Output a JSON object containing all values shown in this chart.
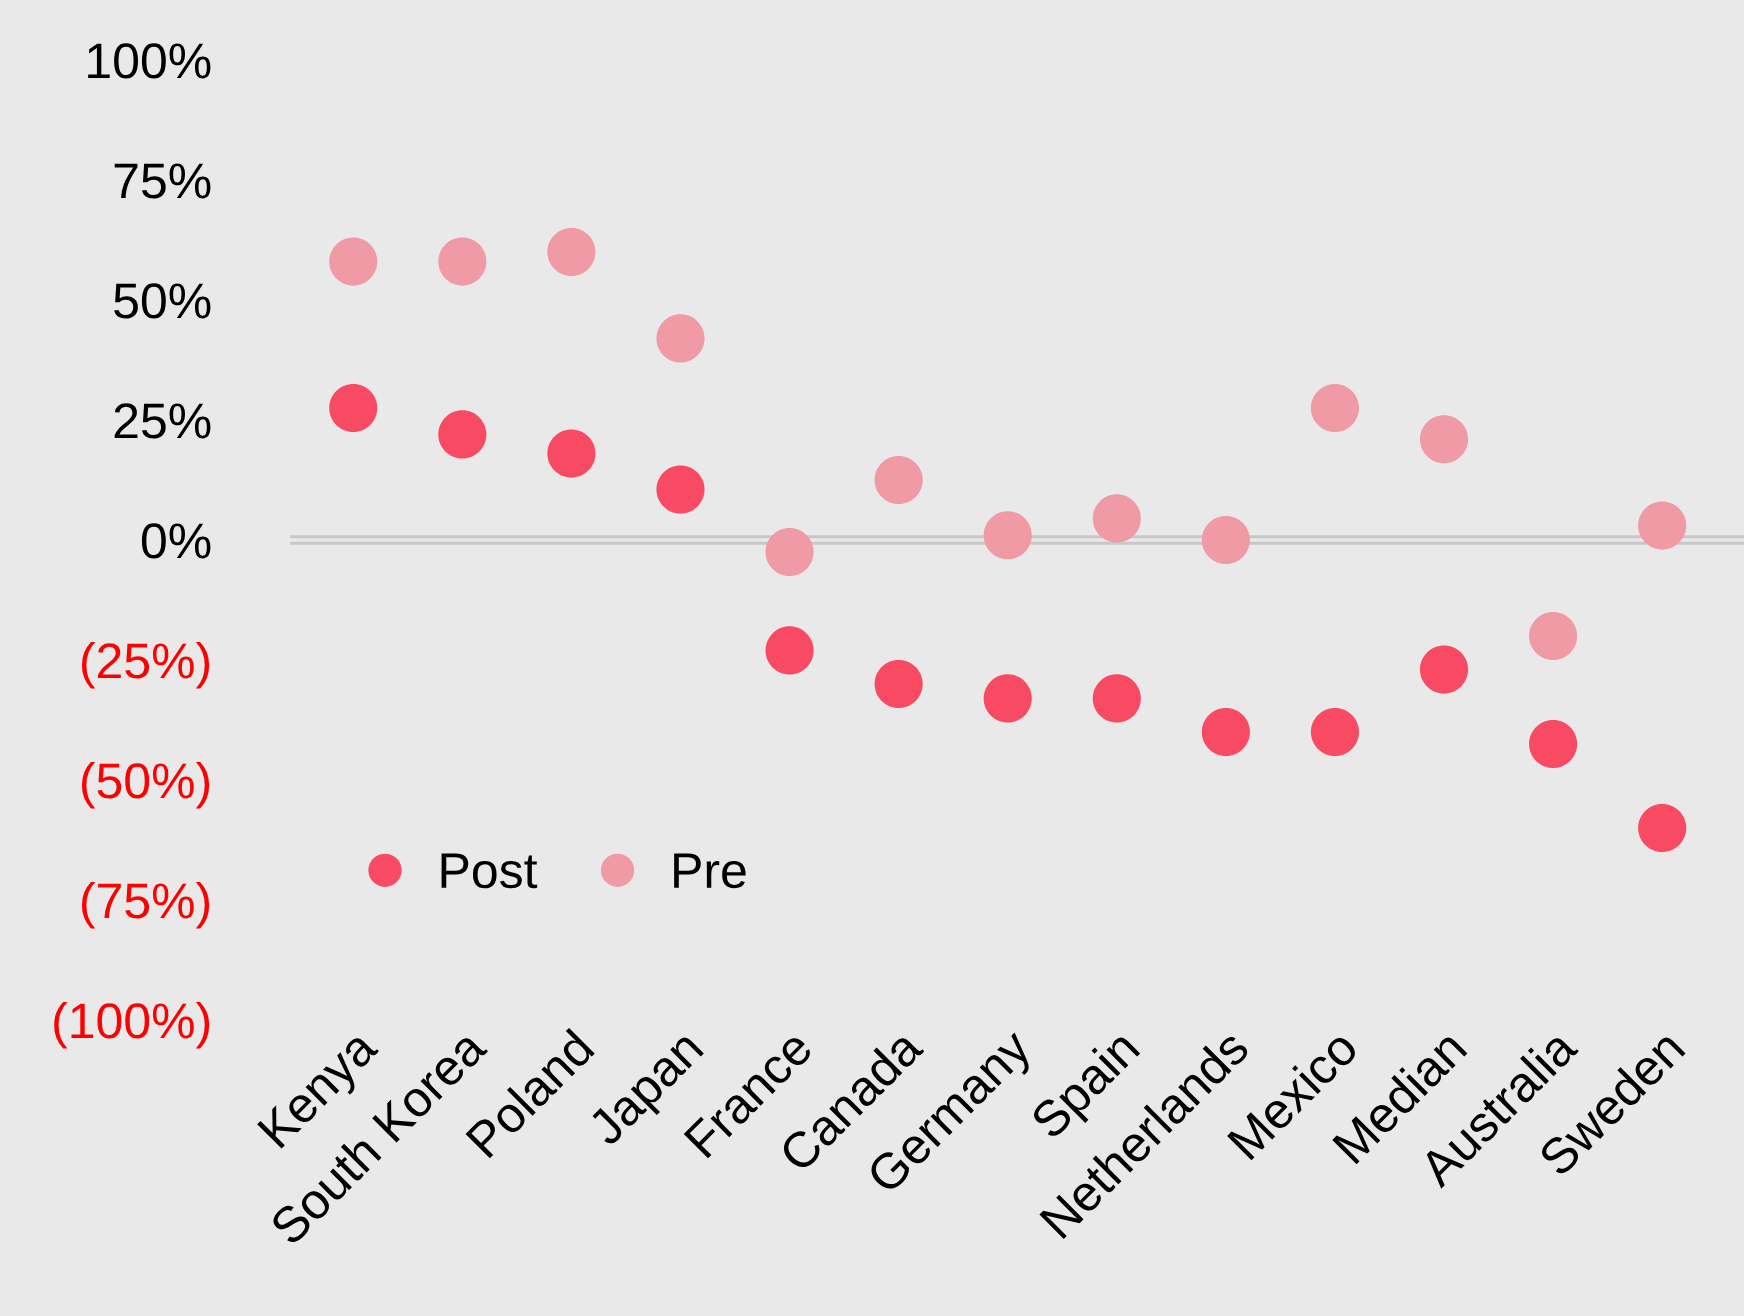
{
  "chart_data": {
    "type": "scatter",
    "categories": [
      "Kenya",
      "South Korea",
      "Poland",
      "Japan",
      "France",
      "Canada",
      "Germany",
      "Spain",
      "Netherlands",
      "Mexico",
      "Median",
      "Australia",
      "Sweden"
    ],
    "series": [
      {
        "name": "Post",
        "color": "#f94a63",
        "values": [
          27.5,
          22,
          18,
          10.5,
          -23,
          -30,
          -33,
          -33,
          -40,
          -40,
          -27,
          -42.5,
          -60
        ]
      },
      {
        "name": "Pre",
        "color": "#f09aa5",
        "values": [
          58,
          58,
          60,
          42,
          -2.5,
          12.5,
          1,
          4.5,
          0,
          27.5,
          21,
          -20,
          3
        ]
      }
    ],
    "ylim": [
      -100,
      100
    ],
    "yticks": [
      {
        "value": 100,
        "label": "100%"
      },
      {
        "value": 75,
        "label": "75%"
      },
      {
        "value": 50,
        "label": "50%"
      },
      {
        "value": 25,
        "label": "25%"
      },
      {
        "value": 0,
        "label": "0%"
      },
      {
        "value": -25,
        "label": "(25%)"
      },
      {
        "value": -50,
        "label": "(50%)"
      },
      {
        "value": -75,
        "label": "(75%)"
      },
      {
        "value": -100,
        "label": "(100%)"
      }
    ],
    "ref_lines": [
      {
        "axis": "y",
        "value": 0,
        "color": "#c8c8c8"
      }
    ],
    "marker": "circle",
    "legend": "bottom left",
    "grid": false
  }
}
